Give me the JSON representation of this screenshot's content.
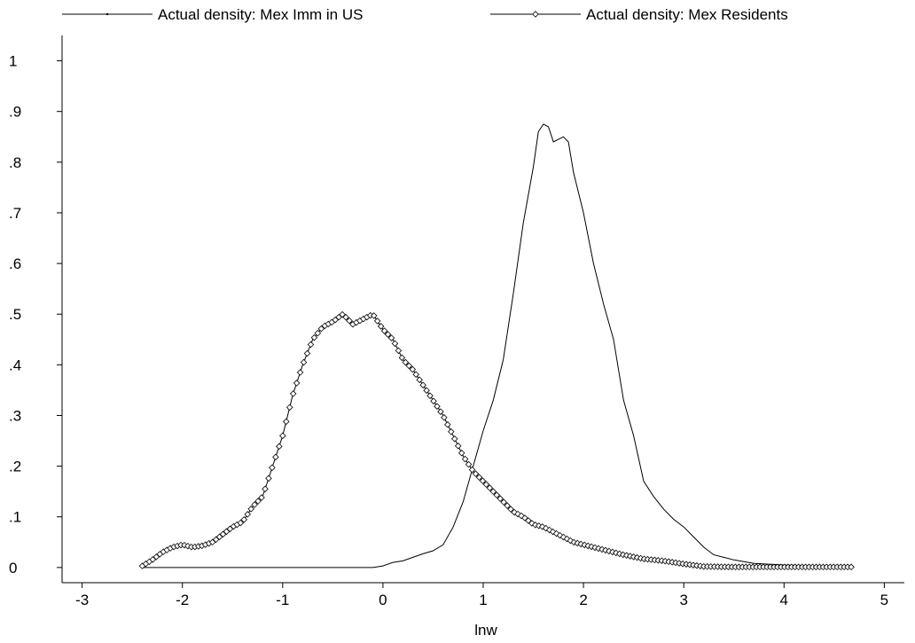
{
  "chart_data": {
    "type": "line",
    "title": "",
    "xlabel": "lnw",
    "ylabel": "",
    "xlim": [
      -3.2,
      5.2
    ],
    "ylim": [
      -0.03,
      1.05
    ],
    "xticks": [
      -3,
      -2,
      -1,
      0,
      1,
      2,
      3,
      4,
      5
    ],
    "xtick_labels": [
      "-3",
      "-2",
      "-1",
      "0",
      "1",
      "2",
      "3",
      "4",
      "5"
    ],
    "yticks": [
      0,
      0.1,
      0.2,
      0.3,
      0.4,
      0.5,
      0.6,
      0.7,
      0.8,
      0.9,
      1
    ],
    "ytick_labels": [
      "0",
      ".1",
      ".2",
      ".3",
      ".4",
      ".5",
      ".6",
      ".7",
      ".8",
      ".9",
      "1"
    ],
    "grid": false,
    "legend_position": "top",
    "series": [
      {
        "name": "Actual density: Mex Imm in US",
        "marker": "dot",
        "points": [
          [
            -2.4,
            0
          ],
          [
            -2.0,
            0
          ],
          [
            -1.5,
            0
          ],
          [
            -1.0,
            0
          ],
          [
            -0.5,
            0
          ],
          [
            -0.1,
            0
          ],
          [
            0.0,
            0.003
          ],
          [
            0.1,
            0.01
          ],
          [
            0.2,
            0.013
          ],
          [
            0.3,
            0.02
          ],
          [
            0.4,
            0.027
          ],
          [
            0.5,
            0.033
          ],
          [
            0.6,
            0.045
          ],
          [
            0.7,
            0.08
          ],
          [
            0.8,
            0.13
          ],
          [
            0.9,
            0.2
          ],
          [
            1.0,
            0.27
          ],
          [
            1.1,
            0.33
          ],
          [
            1.2,
            0.41
          ],
          [
            1.3,
            0.54
          ],
          [
            1.4,
            0.68
          ],
          [
            1.5,
            0.79
          ],
          [
            1.55,
            0.86
          ],
          [
            1.6,
            0.875
          ],
          [
            1.65,
            0.87
          ],
          [
            1.7,
            0.84
          ],
          [
            1.75,
            0.845
          ],
          [
            1.8,
            0.85
          ],
          [
            1.85,
            0.84
          ],
          [
            1.9,
            0.78
          ],
          [
            2.0,
            0.7
          ],
          [
            2.1,
            0.6
          ],
          [
            2.2,
            0.52
          ],
          [
            2.3,
            0.45
          ],
          [
            2.4,
            0.33
          ],
          [
            2.5,
            0.26
          ],
          [
            2.6,
            0.17
          ],
          [
            2.7,
            0.14
          ],
          [
            2.8,
            0.115
          ],
          [
            2.9,
            0.095
          ],
          [
            3.0,
            0.08
          ],
          [
            3.1,
            0.06
          ],
          [
            3.2,
            0.04
          ],
          [
            3.3,
            0.025
          ],
          [
            3.4,
            0.02
          ],
          [
            3.5,
            0.015
          ],
          [
            3.7,
            0.008
          ],
          [
            4.0,
            0.005
          ],
          [
            4.3,
            0.003
          ],
          [
            4.7,
            0.001
          ]
        ]
      },
      {
        "name": "Actual density: Mex Residents",
        "marker": "diamond",
        "points": [
          [
            -2.4,
            0.003
          ],
          [
            -2.3,
            0.015
          ],
          [
            -2.2,
            0.03
          ],
          [
            -2.1,
            0.04
          ],
          [
            -2.0,
            0.045
          ],
          [
            -1.9,
            0.04
          ],
          [
            -1.8,
            0.043
          ],
          [
            -1.7,
            0.05
          ],
          [
            -1.6,
            0.065
          ],
          [
            -1.5,
            0.08
          ],
          [
            -1.4,
            0.09
          ],
          [
            -1.3,
            0.12
          ],
          [
            -1.2,
            0.14
          ],
          [
            -1.1,
            0.2
          ],
          [
            -1.0,
            0.26
          ],
          [
            -0.9,
            0.34
          ],
          [
            -0.8,
            0.4
          ],
          [
            -0.7,
            0.45
          ],
          [
            -0.6,
            0.475
          ],
          [
            -0.5,
            0.485
          ],
          [
            -0.4,
            0.5
          ],
          [
            -0.3,
            0.48
          ],
          [
            -0.2,
            0.49
          ],
          [
            -0.1,
            0.5
          ],
          [
            0.0,
            0.47
          ],
          [
            0.1,
            0.45
          ],
          [
            0.2,
            0.41
          ],
          [
            0.3,
            0.39
          ],
          [
            0.4,
            0.36
          ],
          [
            0.5,
            0.33
          ],
          [
            0.6,
            0.3
          ],
          [
            0.7,
            0.26
          ],
          [
            0.8,
            0.22
          ],
          [
            0.9,
            0.19
          ],
          [
            1.0,
            0.17
          ],
          [
            1.1,
            0.15
          ],
          [
            1.2,
            0.13
          ],
          [
            1.3,
            0.11
          ],
          [
            1.4,
            0.1
          ],
          [
            1.5,
            0.085
          ],
          [
            1.6,
            0.08
          ],
          [
            1.7,
            0.07
          ],
          [
            1.8,
            0.06
          ],
          [
            1.9,
            0.05
          ],
          [
            2.0,
            0.045
          ],
          [
            2.2,
            0.035
          ],
          [
            2.4,
            0.025
          ],
          [
            2.6,
            0.017
          ],
          [
            2.8,
            0.013
          ],
          [
            3.0,
            0.007
          ],
          [
            3.2,
            0.002
          ],
          [
            3.5,
            0.001
          ],
          [
            4.0,
            0.001
          ],
          [
            4.7,
            0.001
          ]
        ]
      }
    ]
  }
}
